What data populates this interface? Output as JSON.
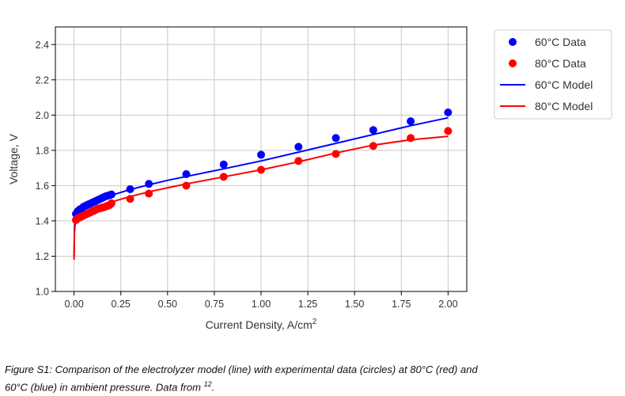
{
  "chart_data": {
    "type": "scatter",
    "xlabel": "Current Density, A/cm",
    "xlabel_sup": "2",
    "ylabel": "Voltage, V",
    "xlim": [
      -0.1,
      2.1
    ],
    "ylim": [
      1.0,
      2.5
    ],
    "xticks": [
      0.0,
      0.25,
      0.5,
      0.75,
      1.0,
      1.25,
      1.5,
      1.75,
      2.0
    ],
    "xtick_labels": [
      "0.00",
      "0.25",
      "0.50",
      "0.75",
      "1.00",
      "1.25",
      "1.50",
      "1.75",
      "2.00"
    ],
    "yticks": [
      1.0,
      1.2,
      1.4,
      1.6,
      1.8,
      2.0,
      2.2,
      2.4
    ],
    "ytick_labels": [
      "1.0",
      "1.2",
      "1.4",
      "1.6",
      "1.8",
      "2.0",
      "2.2",
      "2.4"
    ],
    "grid": true,
    "legend_position": "outside-right-top",
    "series": [
      {
        "name": "60°C Data",
        "kind": "points",
        "color": "#0000ff",
        "x": [
          0.01,
          0.02,
          0.03,
          0.04,
          0.05,
          0.06,
          0.07,
          0.08,
          0.09,
          0.1,
          0.11,
          0.12,
          0.13,
          0.14,
          0.15,
          0.16,
          0.17,
          0.18,
          0.19,
          0.2,
          0.3,
          0.4,
          0.6,
          0.8,
          1.0,
          1.2,
          1.4,
          1.6,
          1.8,
          2.0
        ],
        "y": [
          1.44,
          1.455,
          1.465,
          1.47,
          1.48,
          1.485,
          1.49,
          1.495,
          1.5,
          1.505,
          1.51,
          1.515,
          1.52,
          1.525,
          1.53,
          1.535,
          1.54,
          1.543,
          1.546,
          1.55,
          1.58,
          1.61,
          1.665,
          1.72,
          1.775,
          1.82,
          1.87,
          1.915,
          1.965,
          2.015
        ]
      },
      {
        "name": "80°C Data",
        "kind": "points",
        "color": "#ff0000",
        "x": [
          0.01,
          0.02,
          0.03,
          0.04,
          0.05,
          0.06,
          0.07,
          0.08,
          0.09,
          0.1,
          0.11,
          0.12,
          0.13,
          0.14,
          0.15,
          0.16,
          0.17,
          0.18,
          0.19,
          0.2,
          0.3,
          0.4,
          0.6,
          0.8,
          1.0,
          1.2,
          1.4,
          1.6,
          1.8,
          2.0
        ],
        "y": [
          1.405,
          1.415,
          1.42,
          1.425,
          1.43,
          1.435,
          1.44,
          1.445,
          1.45,
          1.455,
          1.46,
          1.465,
          1.47,
          1.472,
          1.475,
          1.478,
          1.482,
          1.486,
          1.49,
          1.5,
          1.525,
          1.555,
          1.6,
          1.65,
          1.69,
          1.74,
          1.78,
          1.825,
          1.87,
          1.91
        ]
      },
      {
        "name": "60°C Model",
        "kind": "line",
        "color": "#0000ff",
        "x": [
          0.0,
          0.002,
          0.005,
          0.01,
          0.02,
          0.04,
          0.06,
          0.08,
          0.1,
          0.15,
          0.2,
          0.3,
          0.4,
          0.5,
          0.6,
          0.8,
          1.0,
          1.2,
          1.4,
          1.6,
          1.8,
          2.0
        ],
        "y": [
          1.2,
          1.36,
          1.4,
          1.425,
          1.445,
          1.468,
          1.482,
          1.495,
          1.505,
          1.527,
          1.545,
          1.578,
          1.605,
          1.63,
          1.652,
          1.695,
          1.74,
          1.79,
          1.84,
          1.89,
          1.94,
          1.985
        ]
      },
      {
        "name": "80°C Model",
        "kind": "line",
        "color": "#ff0000",
        "x": [
          0.0,
          0.002,
          0.005,
          0.01,
          0.02,
          0.04,
          0.06,
          0.08,
          0.1,
          0.15,
          0.2,
          0.3,
          0.4,
          0.5,
          0.6,
          0.8,
          1.0,
          1.2,
          1.4,
          1.6,
          1.8,
          2.0
        ],
        "y": [
          1.18,
          1.33,
          1.37,
          1.395,
          1.415,
          1.435,
          1.448,
          1.458,
          1.468,
          1.49,
          1.508,
          1.538,
          1.565,
          1.588,
          1.61,
          1.65,
          1.69,
          1.735,
          1.785,
          1.83,
          1.86,
          1.88
        ]
      }
    ]
  },
  "caption": {
    "line1": "Figure S1: Comparison of the electrolyzer model (line) with experimental data (circles) at 80°C (red) and",
    "line2_prefix": "60°C (blue) in ambient pressure. Data from ",
    "line2_ref": "12",
    "line2_suffix": "."
  }
}
